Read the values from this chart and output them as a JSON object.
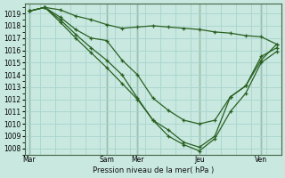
{
  "bg_color": "#c8e8e0",
  "grid_color": "#a8d4cc",
  "line_color": "#2a6020",
  "xlabel": "Pression niveau de la mer( hPa )",
  "ylim": [
    1007.5,
    1019.8
  ],
  "ytick_vals": [
    1008,
    1009,
    1010,
    1011,
    1012,
    1013,
    1014,
    1015,
    1016,
    1017,
    1018,
    1019
  ],
  "xtick_labels": [
    "Mar",
    "Sam",
    "Mer",
    "Jeu",
    "Ven"
  ],
  "xtick_pos": [
    0,
    5,
    7,
    11,
    15
  ],
  "total_points": 17,
  "series": [
    [
      1019.2,
      1019.5,
      1019.3,
      1018.8,
      1018.5,
      1018.1,
      1017.8,
      1017.9,
      1018.0,
      1017.9,
      1017.8,
      1017.7,
      1017.5,
      1017.4,
      1017.2,
      1017.1,
      1016.5
    ],
    [
      1019.2,
      1019.5,
      1018.7,
      1017.7,
      1017.0,
      1016.8,
      1015.2,
      1014.0,
      1012.1,
      1011.1,
      1010.3,
      1010.0,
      1010.3,
      1012.2,
      1013.1,
      1015.2,
      1016.5
    ],
    [
      1019.2,
      1019.5,
      1018.5,
      1017.3,
      1016.2,
      1015.2,
      1014.0,
      1012.1,
      1010.3,
      1009.5,
      1008.5,
      1008.1,
      1009.0,
      1012.2,
      1013.1,
      1015.5,
      1016.2
    ],
    [
      1019.2,
      1019.5,
      1018.3,
      1017.0,
      1015.8,
      1014.6,
      1013.3,
      1012.0,
      1010.3,
      1009.0,
      1008.3,
      1007.8,
      1008.8,
      1011.0,
      1012.5,
      1015.0,
      1015.9
    ]
  ]
}
